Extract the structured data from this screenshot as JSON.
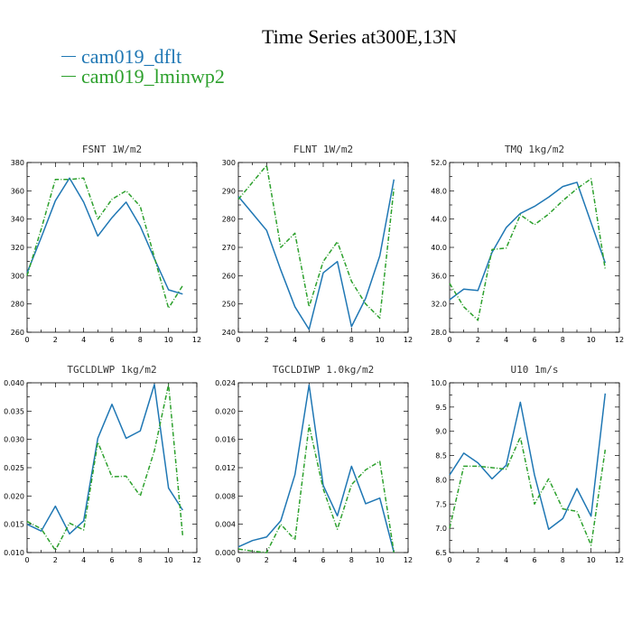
{
  "figure": {
    "title": "Time Series at300E,13N",
    "colors": {
      "dflt": "#1f77b4",
      "lminwp2": "#2ca02c"
    }
  },
  "legend": [
    {
      "name": "cam019_dflt",
      "color": "#1f77b4",
      "style": "solid"
    },
    {
      "name": "cam019_lminwp2",
      "color": "#2ca02c",
      "style": "dashdot"
    }
  ],
  "chart_data": [
    {
      "type": "line",
      "title": "FSNT  1W/m2",
      "xlim": [
        0,
        12
      ],
      "ylim": [
        260,
        380
      ],
      "xticks": [
        "0",
        "2",
        "4",
        "6",
        "8",
        "10",
        "12"
      ],
      "yticks": [
        "260",
        "280",
        "300",
        "320",
        "340",
        "360",
        "380"
      ],
      "x": [
        0,
        1,
        2,
        3,
        4,
        5,
        6,
        7,
        8,
        9,
        10,
        11
      ],
      "series": [
        {
          "name": "cam019_dflt",
          "values": [
            302,
            327,
            353,
            369,
            352,
            328,
            341,
            352,
            335,
            312,
            290,
            287
          ]
        },
        {
          "name": "cam019_lminwp2",
          "values": [
            300,
            333,
            368,
            368,
            369,
            340,
            354,
            360,
            349,
            313,
            277,
            293
          ]
        }
      ]
    },
    {
      "type": "line",
      "title": "FLNT  1W/m2",
      "xlim": [
        0,
        12
      ],
      "ylim": [
        240,
        300
      ],
      "xticks": [
        "0",
        "2",
        "4",
        "6",
        "8",
        "10",
        "12"
      ],
      "yticks": [
        "240",
        "250",
        "260",
        "270",
        "280",
        "290",
        "300"
      ],
      "x": [
        0,
        1,
        2,
        3,
        4,
        5,
        6,
        7,
        8,
        9,
        10,
        11
      ],
      "series": [
        {
          "name": "cam019_dflt",
          "values": [
            288,
            282,
            276,
            262,
            249,
            241,
            261,
            265,
            242,
            252,
            267,
            294
          ]
        },
        {
          "name": "cam019_lminwp2",
          "values": [
            287,
            293,
            299,
            270,
            275,
            249,
            265,
            272,
            258,
            250,
            245,
            291
          ]
        }
      ]
    },
    {
      "type": "line",
      "title": "TMQ  1kg/m2",
      "xlim": [
        0,
        12
      ],
      "ylim": [
        28,
        52
      ],
      "xticks": [
        "0",
        "2",
        "4",
        "6",
        "8",
        "10",
        "12"
      ],
      "yticks": [
        "28.0",
        "32.0",
        "36.0",
        "40.0",
        "44.0",
        "48.0",
        "52.0"
      ],
      "x": [
        0,
        1,
        2,
        3,
        4,
        5,
        6,
        7,
        8,
        9,
        10,
        11
      ],
      "series": [
        {
          "name": "cam019_dflt",
          "values": [
            32.6,
            34.1,
            33.9,
            39.3,
            42.8,
            44.8,
            45.8,
            47.1,
            48.6,
            49.2,
            43.5,
            37.8
          ]
        },
        {
          "name": "cam019_lminwp2",
          "values": [
            34.9,
            31.6,
            29.7,
            39.7,
            39.9,
            44.6,
            43.2,
            44.7,
            46.6,
            48.3,
            49.7,
            36.9
          ]
        }
      ]
    },
    {
      "type": "line",
      "title": "TGCLDLWP  1kg/m2",
      "xlim": [
        0,
        12
      ],
      "ylim": [
        0.01,
        0.04
      ],
      "xticks": [
        "0",
        "2",
        "4",
        "6",
        "8",
        "10",
        "12"
      ],
      "yticks": [
        "0.010",
        "0.015",
        "0.020",
        "0.025",
        "0.030",
        "0.035",
        "0.040"
      ],
      "x": [
        0,
        1,
        2,
        3,
        4,
        5,
        6,
        7,
        8,
        9,
        10,
        11
      ],
      "series": [
        {
          "name": "cam019_dflt",
          "values": [
            0.015,
            0.0138,
            0.0182,
            0.0133,
            0.0156,
            0.0302,
            0.0362,
            0.0302,
            0.0315,
            0.0397,
            0.0214,
            0.0175
          ]
        },
        {
          "name": "cam019_lminwp2",
          "values": [
            0.0155,
            0.0142,
            0.0104,
            0.0152,
            0.014,
            0.0295,
            0.0234,
            0.0235,
            0.02,
            0.028,
            0.0397,
            0.013
          ]
        }
      ]
    },
    {
      "type": "line",
      "title": "TGCLDIWP  1.0kg/m2",
      "xlim": [
        0,
        12
      ],
      "ylim": [
        0.0,
        0.024
      ],
      "xticks": [
        "0",
        "2",
        "4",
        "6",
        "8",
        "10",
        "12"
      ],
      "yticks": [
        "0.000",
        "0.004",
        "0.008",
        "0.012",
        "0.016",
        "0.020",
        "0.024"
      ],
      "x": [
        0,
        1,
        2,
        3,
        4,
        5,
        6,
        7,
        8,
        9,
        10,
        11
      ],
      "series": [
        {
          "name": "cam019_dflt",
          "values": [
            0.0008,
            0.0017,
            0.0022,
            0.0045,
            0.011,
            0.0237,
            0.0095,
            0.0052,
            0.0122,
            0.0069,
            0.0077,
            0.0
          ]
        },
        {
          "name": "cam019_lminwp2",
          "values": [
            0.0005,
            0.0002,
            0.0,
            0.004,
            0.0018,
            0.018,
            0.009,
            0.0033,
            0.0096,
            0.0117,
            0.0129,
            0.0
          ]
        }
      ]
    },
    {
      "type": "line",
      "title": "U10  1m/s",
      "xlim": [
        0,
        12
      ],
      "ylim": [
        6.5,
        10.0
      ],
      "xticks": [
        "0",
        "2",
        "4",
        "6",
        "8",
        "10",
        "12"
      ],
      "yticks": [
        "6.5",
        "7.0",
        "7.5",
        "8.0",
        "8.5",
        "9.0",
        "9.5",
        "10.0"
      ],
      "x": [
        0,
        1,
        2,
        3,
        4,
        5,
        6,
        7,
        8,
        9,
        10,
        11
      ],
      "series": [
        {
          "name": "cam019_dflt",
          "values": [
            8.1,
            8.55,
            8.35,
            8.02,
            8.3,
            9.6,
            8.1,
            6.98,
            7.2,
            7.82,
            7.25,
            9.78
          ]
        },
        {
          "name": "cam019_lminwp2",
          "values": [
            7.0,
            8.28,
            8.28,
            8.25,
            8.22,
            8.88,
            7.5,
            8.02,
            7.4,
            7.35,
            6.65,
            8.62
          ]
        }
      ]
    }
  ]
}
